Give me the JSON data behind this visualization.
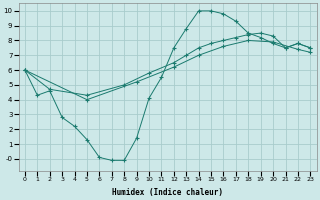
{
  "xlabel": "Humidex (Indice chaleur)",
  "background_color": "#cde8e8",
  "grid_color": "#a8cccc",
  "line_color": "#1a7a6e",
  "xlim": [
    -0.5,
    23.5
  ],
  "ylim": [
    -0.8,
    10.5
  ],
  "xticks": [
    0,
    1,
    2,
    3,
    4,
    5,
    6,
    7,
    8,
    9,
    10,
    11,
    12,
    13,
    14,
    15,
    16,
    17,
    18,
    19,
    20,
    21,
    22,
    23
  ],
  "yticks": [
    0,
    1,
    2,
    3,
    4,
    5,
    6,
    7,
    8,
    9,
    10
  ],
  "ytick_labels": [
    "-0",
    "1",
    "2",
    "3",
    "4",
    "5",
    "6",
    "7",
    "8",
    "9",
    "10"
  ],
  "jagged_x": [
    0,
    1,
    2,
    3,
    4,
    5,
    6,
    7,
    8,
    9,
    10,
    11,
    12,
    13,
    14,
    15,
    16,
    17,
    18,
    19,
    20,
    21,
    22,
    23
  ],
  "jagged_y": [
    6.0,
    4.3,
    4.6,
    2.8,
    2.2,
    1.3,
    0.1,
    -0.1,
    -0.1,
    1.4,
    4.1,
    5.5,
    7.5,
    8.8,
    10.0,
    10.0,
    9.8,
    9.3,
    8.5,
    8.2,
    7.8,
    7.5,
    7.8,
    7.5
  ],
  "upper1_x": [
    0,
    2,
    5,
    8,
    10,
    12,
    13,
    14,
    15,
    16,
    17,
    18,
    19,
    20,
    21,
    22,
    23
  ],
  "upper1_y": [
    6.0,
    4.7,
    4.3,
    5.0,
    5.8,
    6.5,
    7.0,
    7.5,
    7.8,
    8.0,
    8.2,
    8.4,
    8.5,
    8.3,
    7.5,
    7.8,
    7.5
  ],
  "upper2_x": [
    0,
    5,
    9,
    12,
    14,
    16,
    18,
    20,
    22,
    23
  ],
  "upper2_y": [
    6.0,
    4.0,
    5.2,
    6.2,
    7.0,
    7.6,
    8.0,
    7.9,
    7.4,
    7.2
  ]
}
